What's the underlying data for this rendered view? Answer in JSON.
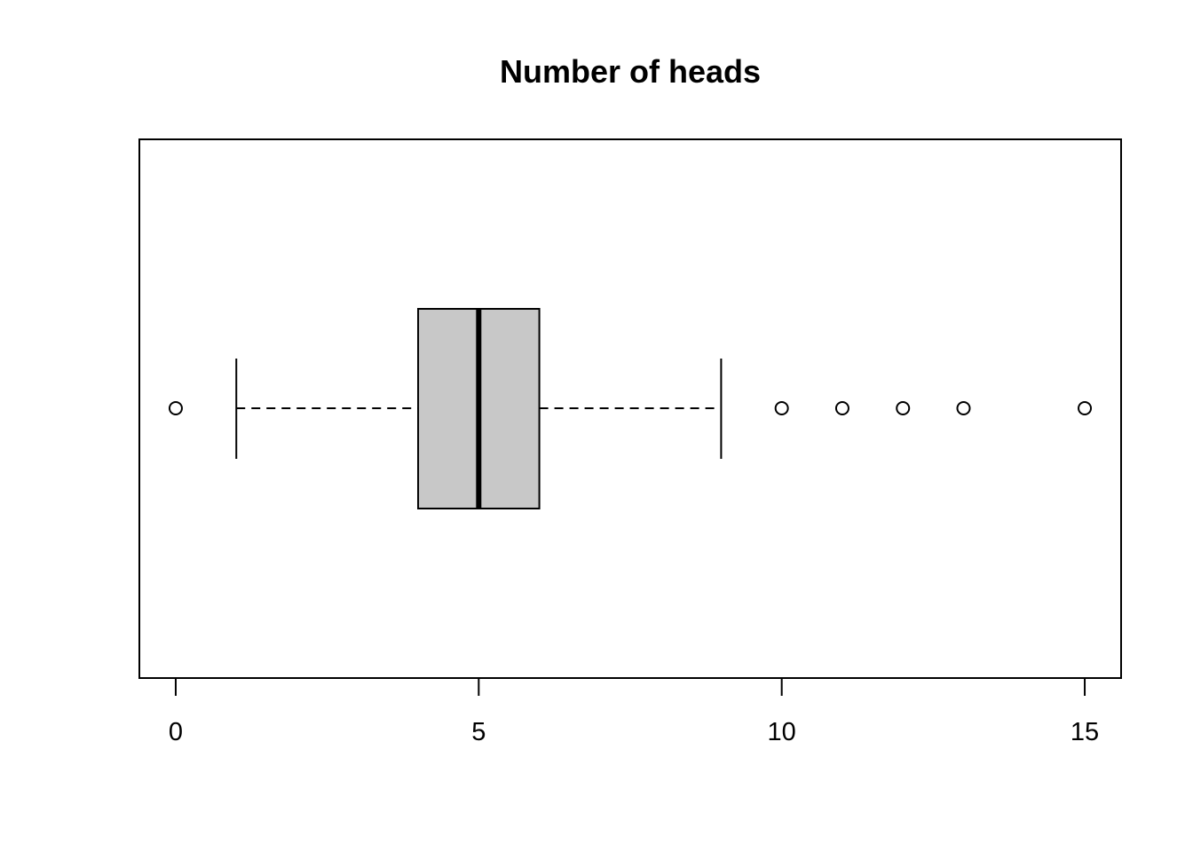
{
  "chart_data": {
    "type": "boxplot",
    "orientation": "horizontal",
    "title": "Number of heads",
    "xlabel": "",
    "ylabel": "",
    "xlim": [
      -0.6,
      15.6
    ],
    "ticks": [
      0,
      5,
      10,
      15
    ],
    "tick_labels": [
      "0",
      "5",
      "10",
      "15"
    ],
    "grid": false,
    "box": {
      "whisker_low": 1,
      "q1": 4,
      "median": 5,
      "q3": 6,
      "whisker_high": 9,
      "fill": "#c8c8c8"
    },
    "outliers": [
      0,
      10,
      11,
      12,
      13,
      15
    ]
  }
}
